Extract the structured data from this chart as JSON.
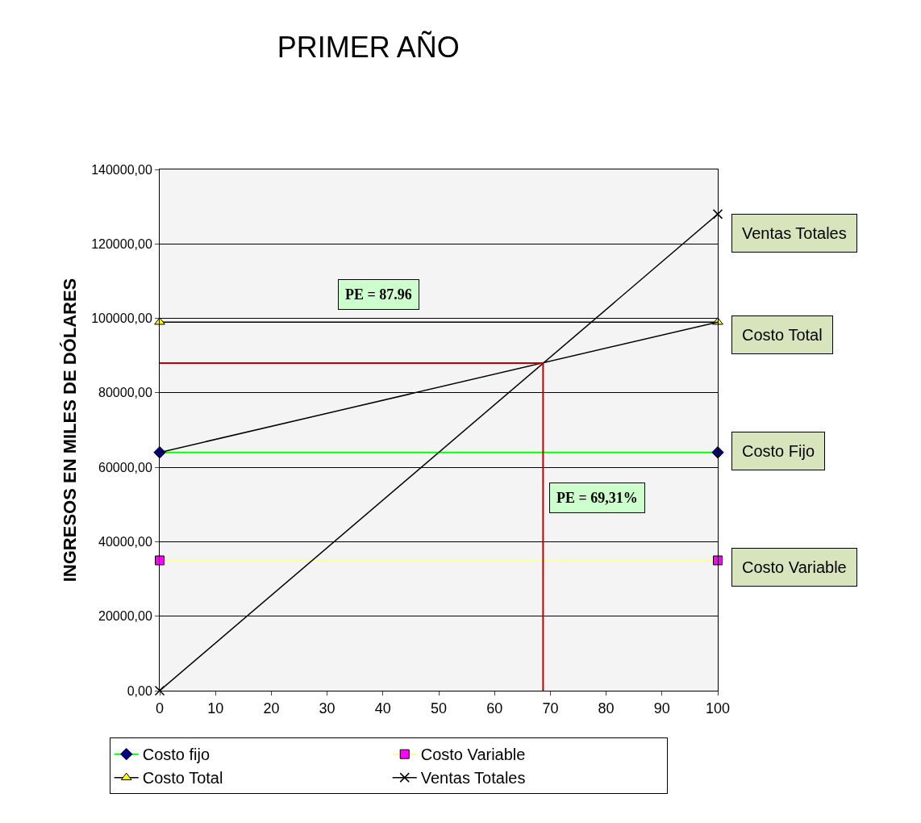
{
  "chart_data": {
    "type": "line",
    "title": "PRIMER AÑO",
    "ylabel": "INGRESOS EN MILES DE DÓLARES",
    "x": [
      0,
      100
    ],
    "series": [
      {
        "name": "Costo fijo",
        "color": "#00ff00",
        "colors": [
          "#000080",
          "#000080"
        ],
        "marker": "diamond",
        "values": [
          64000,
          64000
        ]
      },
      {
        "name": "Costo Variable",
        "color": "#ffff99",
        "colors": [
          "#ff00ff",
          "#ff00ff"
        ],
        "marker": "square",
        "values": [
          35000,
          35000
        ]
      },
      {
        "name": "Costo Total",
        "color": "#000000",
        "colors": [
          "#ffff00",
          "#ffff00"
        ],
        "marker": "triangle",
        "values": [
          99000,
          99000
        ]
      },
      {
        "name": "Ventas Totales",
        "color": "#000000",
        "colors": [
          "#000000",
          "#000000"
        ],
        "marker": "cross",
        "values": [
          0,
          128000
        ]
      },
      {
        "color": "#000000",
        "marker": "none",
        "x": [
          0,
          100
        ],
        "values": [
          64000,
          99000
        ]
      },
      {
        "color": "#c00000",
        "marker": "none",
        "x": [
          68.7,
          68.7
        ],
        "values": [
          0,
          88000
        ]
      },
      {
        "color": "#c00000",
        "marker": "none",
        "x": [
          0,
          68.7
        ],
        "values": [
          88000,
          88000
        ]
      }
    ],
    "xlim": [
      0,
      100
    ],
    "xticks": [
      0,
      10,
      20,
      30,
      40,
      50,
      60,
      70,
      80,
      90,
      100
    ],
    "ylim": [
      0,
      140000
    ],
    "yticks": [
      {
        "value": 0,
        "label": "0,00"
      },
      {
        "value": 20000,
        "label": "20000,00"
      },
      {
        "value": 40000,
        "label": "40000,00"
      },
      {
        "value": 60000,
        "label": "60000,00"
      },
      {
        "value": 80000,
        "label": "80000,00"
      },
      {
        "value": 100000,
        "label": "100000,00"
      },
      {
        "value": 120000,
        "label": "120000,00"
      },
      {
        "value": 140000,
        "label": "140000,00"
      }
    ],
    "grid": "y",
    "legend": "bottom",
    "annotations": [
      "Ventas Totales",
      "Costo Total",
      "Costo Fijo",
      "Costo Variable",
      "PE = 87.96",
      "PE = 69,31%"
    ]
  }
}
